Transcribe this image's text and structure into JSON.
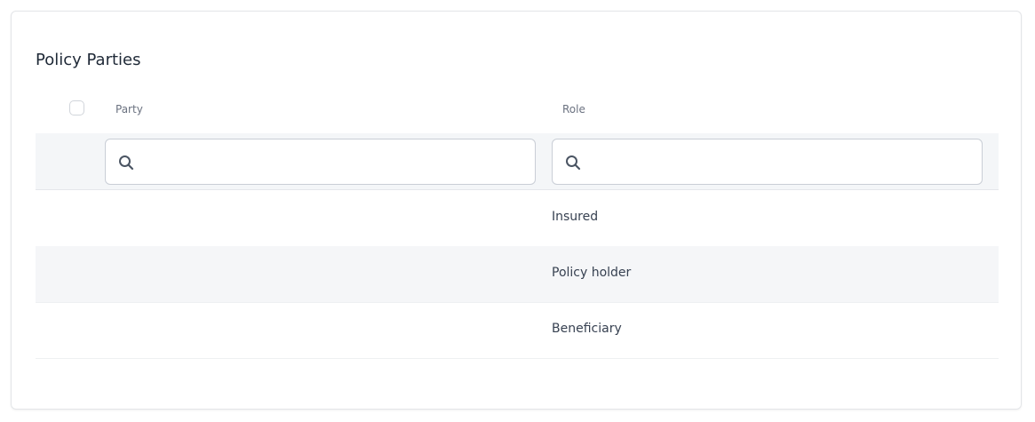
{
  "title": "Policy Parties",
  "columns": {
    "party": "Party",
    "role": "Role"
  },
  "rows": [
    {
      "party": "",
      "role": "Insured"
    },
    {
      "party": "",
      "role": "Policy holder"
    },
    {
      "party": "",
      "role": "Beneficiary"
    }
  ]
}
